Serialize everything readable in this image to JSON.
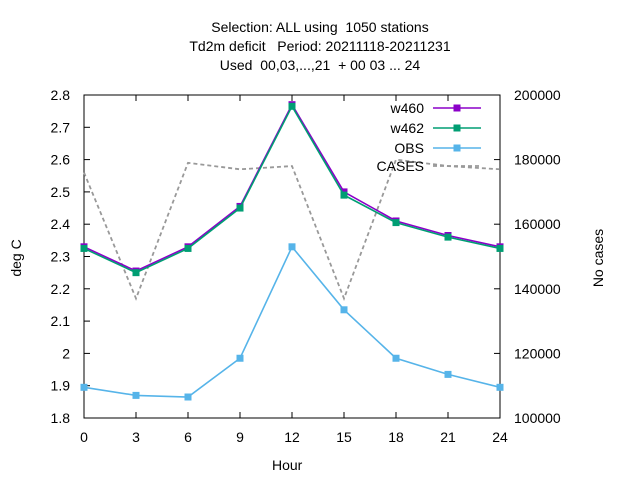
{
  "chart_data": {
    "type": "line",
    "title_lines": [
      "Selection: ALL using  1050 stations",
      "Td2m deficit   Period: 20211118-20211231",
      "Used  00,03,...,21  + 00 03 ... 24"
    ],
    "xlabel": "Hour",
    "ylabel": "deg C",
    "y2label": "No cases",
    "x": [
      0,
      3,
      6,
      9,
      12,
      15,
      18,
      21,
      24
    ],
    "xlim": [
      0,
      24
    ],
    "ylim": [
      1.8,
      2.8
    ],
    "y2lim": [
      100000,
      200000
    ],
    "xticks": [
      "0",
      "3",
      "6",
      "9",
      "12",
      "15",
      "18",
      "21",
      "24"
    ],
    "yticks": [
      "1.8",
      "1.9",
      "2",
      "2.1",
      "2.2",
      "2.3",
      "2.4",
      "2.5",
      "2.6",
      "2.7",
      "2.8"
    ],
    "y2ticks": [
      "100000",
      "120000",
      "140000",
      "160000",
      "180000",
      "200000"
    ],
    "grid": false,
    "legend_position": "top-right",
    "series": [
      {
        "name": "w460",
        "axis": "left",
        "color": "#8b00c8",
        "marker": "square",
        "values": [
          2.33,
          2.255,
          2.33,
          2.455,
          2.77,
          2.5,
          2.41,
          2.365,
          2.33
        ]
      },
      {
        "name": "w462",
        "axis": "left",
        "color": "#009e73",
        "marker": "square",
        "values": [
          2.325,
          2.25,
          2.325,
          2.45,
          2.765,
          2.49,
          2.405,
          2.36,
          2.325
        ]
      },
      {
        "name": "OBS",
        "axis": "left",
        "color": "#56b4e9",
        "marker": "square",
        "values": [
          1.895,
          1.87,
          1.865,
          1.985,
          2.33,
          2.135,
          1.985,
          1.935,
          1.895
        ]
      },
      {
        "name": "CASES",
        "axis": "right",
        "color": "#999999",
        "dash": true,
        "values": [
          176000,
          137000,
          179000,
          177000,
          178000,
          137000,
          180000,
          178000,
          177000
        ]
      }
    ]
  }
}
